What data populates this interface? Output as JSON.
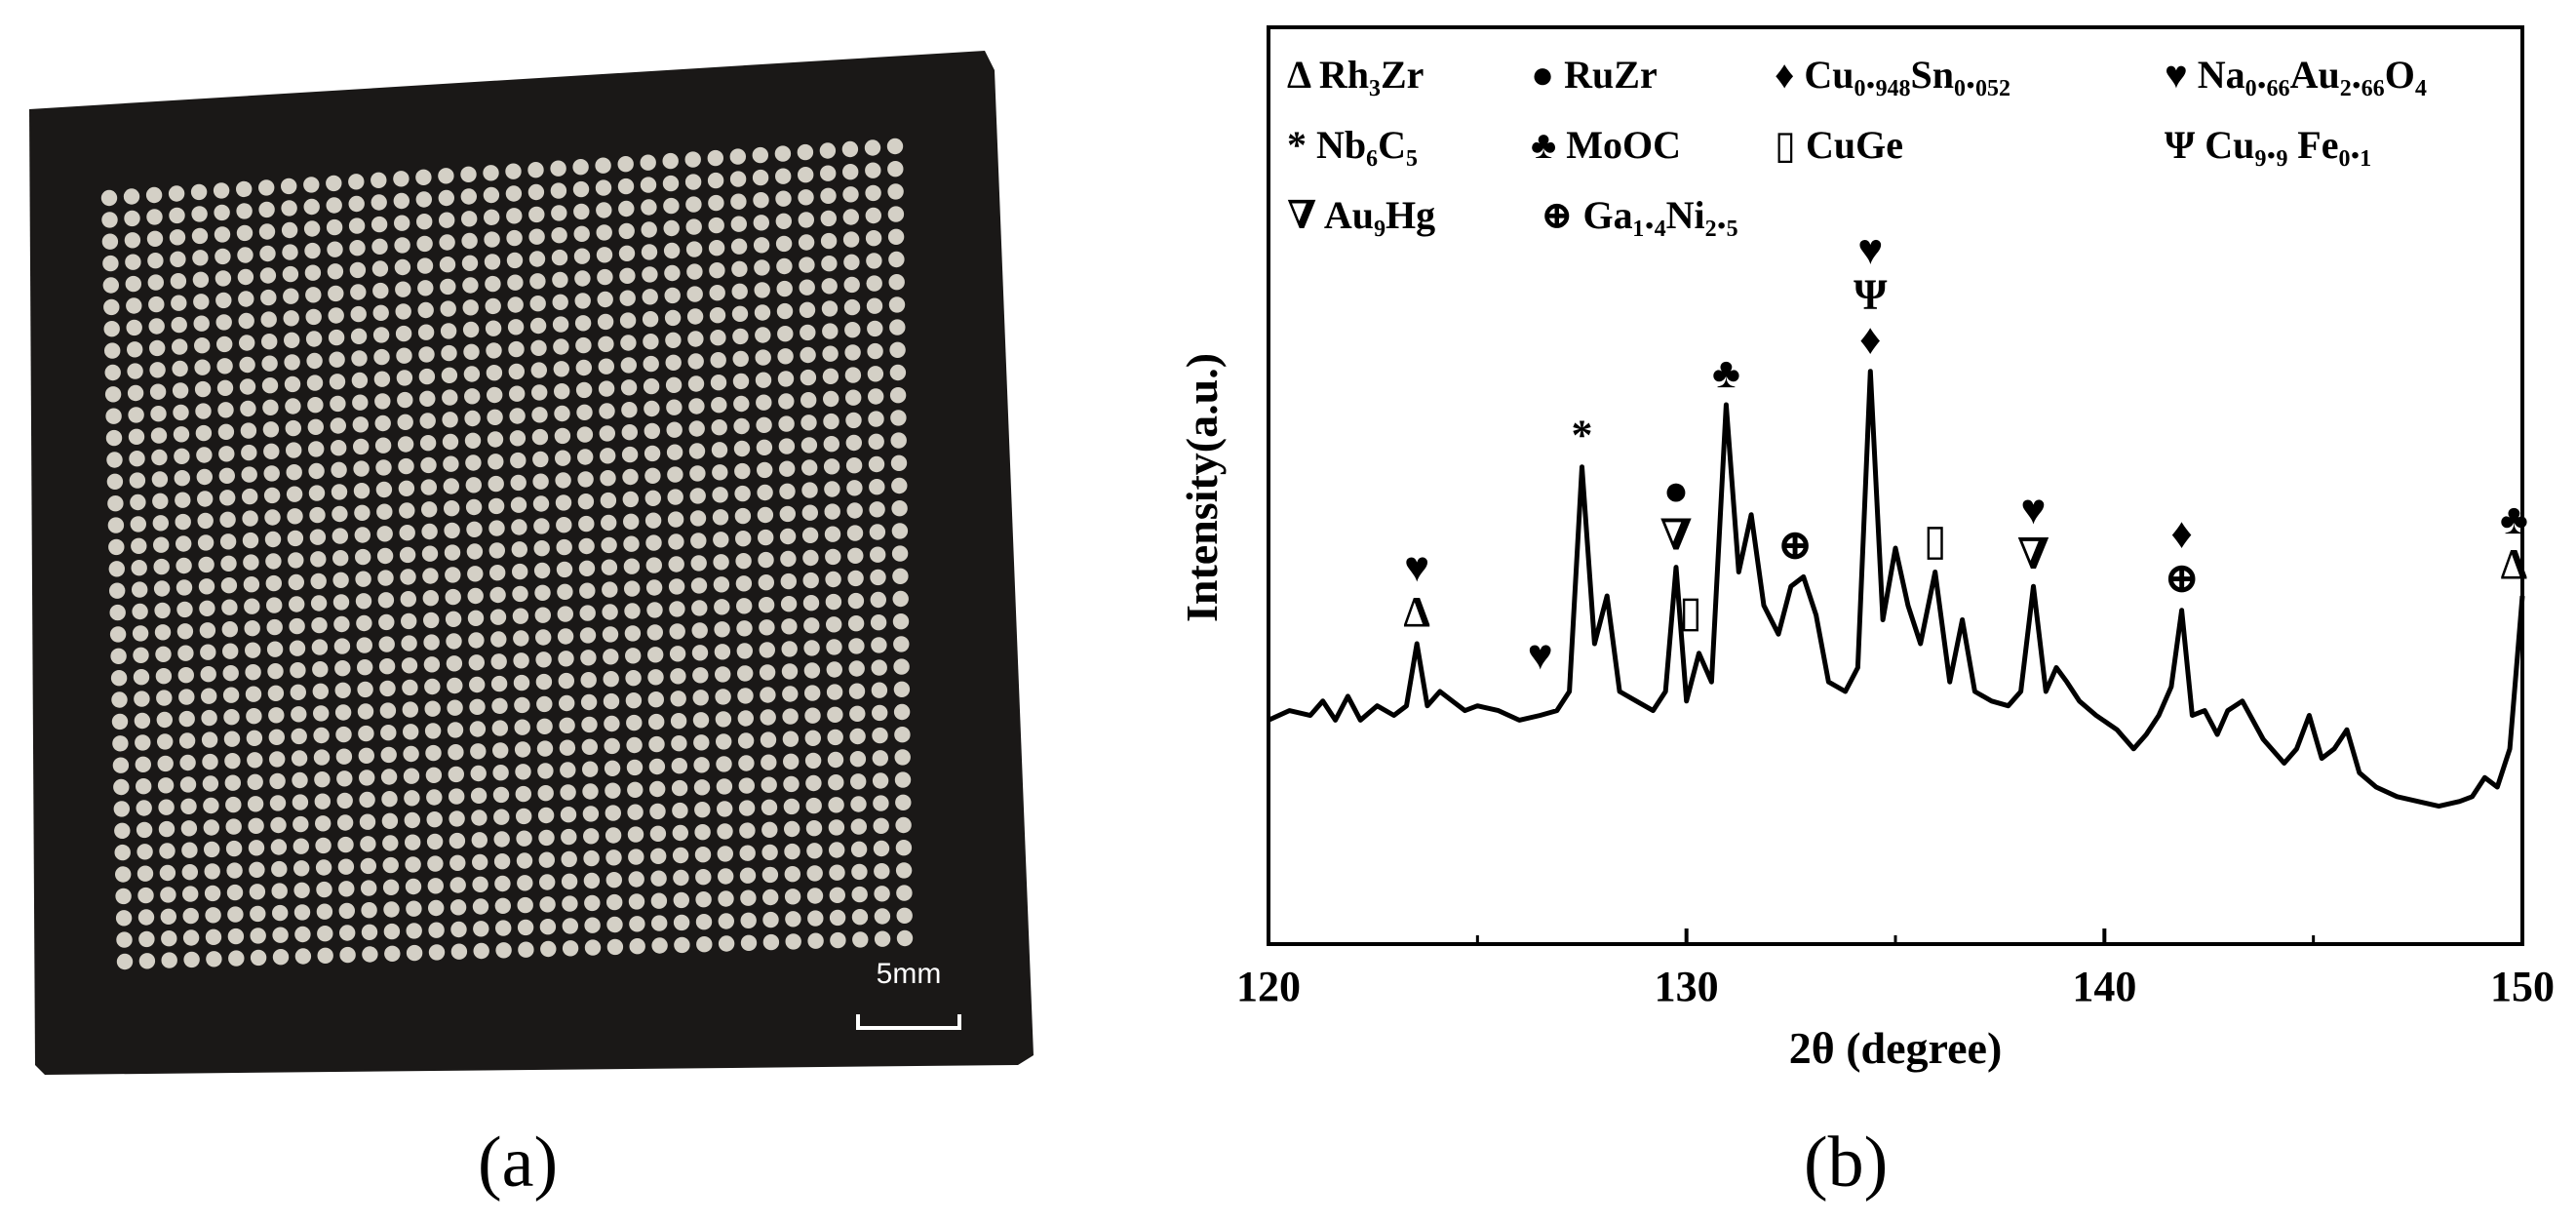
{
  "panel_a": {
    "sublabel": "(a)",
    "scale_bar_label": "5mm",
    "grid_rows": 36,
    "grid_cols": 36,
    "plate_color": "#1a1817",
    "ball_color": "#d4d0c6"
  },
  "panel_b": {
    "sublabel": "(b)"
  },
  "chart_data": {
    "type": "line",
    "title": "",
    "xlabel": "2θ (degree)",
    "ylabel": "Intensity(a.u.)",
    "xlim": [
      120,
      150
    ],
    "ylim": [
      0,
      100
    ],
    "xticks": [
      120,
      130,
      140,
      150
    ],
    "xtick_labels": [
      "120",
      "130",
      "140",
      "150"
    ],
    "grid": false,
    "legend_position": "top",
    "legend": [
      {
        "symbol": "Δ",
        "name": "Rh₃Zr"
      },
      {
        "symbol": "●",
        "name": "RuZr"
      },
      {
        "symbol": "♦",
        "name": "Cu₀.₉₄₈Sn₀.₀₅₂"
      },
      {
        "symbol": "♥",
        "name": "Na₀.₆₆Au₂.₆₆O₄"
      },
      {
        "symbol": "*",
        "name": "Nb₆C₅"
      },
      {
        "symbol": "♣",
        "name": "MoOC"
      },
      {
        "symbol": "▯",
        "name": "CuGe"
      },
      {
        "symbol": "Ψ",
        "name": "Cu₉.₉ Fe₀.₁"
      },
      {
        "symbol": "∇",
        "name": "Au₉Hg"
      },
      {
        "symbol": "⊕",
        "name": "Ga₁.₄Ni₂.₅"
      }
    ],
    "series": [
      {
        "name": "XRD pattern",
        "x": [
          120.0,
          120.5,
          121.0,
          121.3,
          121.6,
          121.9,
          122.2,
          122.6,
          123.0,
          123.3,
          123.55,
          123.8,
          124.1,
          124.4,
          124.7,
          125.0,
          125.5,
          126.0,
          126.5,
          126.9,
          127.2,
          127.5,
          127.8,
          128.1,
          128.4,
          128.8,
          129.2,
          129.5,
          129.75,
          130.0,
          130.3,
          130.6,
          130.95,
          131.25,
          131.55,
          131.85,
          132.2,
          132.5,
          132.8,
          133.1,
          133.4,
          133.8,
          134.1,
          134.4,
          134.7,
          135.0,
          135.3,
          135.6,
          135.95,
          136.3,
          136.6,
          136.9,
          137.3,
          137.7,
          138.0,
          138.3,
          138.6,
          138.85,
          139.1,
          139.4,
          139.8,
          140.3,
          140.7,
          141.0,
          141.3,
          141.6,
          141.85,
          142.1,
          142.4,
          142.7,
          142.95,
          143.3,
          143.8,
          144.3,
          144.6,
          144.9,
          145.2,
          145.5,
          145.8,
          146.1,
          146.5,
          147.0,
          147.5,
          148.0,
          148.5,
          148.8,
          149.1,
          149.4,
          149.7,
          150.0
        ],
        "y": [
          34,
          36,
          35,
          38,
          34,
          39,
          34,
          37,
          35,
          37,
          50,
          37,
          40,
          38,
          36,
          37,
          36,
          34,
          35,
          36,
          40,
          87,
          50,
          60,
          40,
          38,
          36,
          40,
          66,
          38,
          48,
          42,
          100,
          65,
          77,
          58,
          52,
          62,
          64,
          56,
          42,
          40,
          45,
          107,
          55,
          70,
          58,
          50,
          65,
          42,
          55,
          40,
          38,
          37,
          40,
          62,
          40,
          45,
          42,
          38,
          35,
          32,
          28,
          31,
          35,
          41,
          57,
          35,
          36,
          31,
          36,
          38,
          30,
          25,
          28,
          35,
          26,
          28,
          32,
          23,
          20,
          18,
          17,
          16,
          17,
          18,
          22,
          20,
          28,
          60
        ],
        "values_note": "y in arbitrary units on a 0–100 scale (relative peak heights)"
      }
    ],
    "peak_annotations": [
      {
        "x": 123.55,
        "y": 50,
        "symbols": [
          "♥",
          "Δ"
        ]
      },
      {
        "x": 126.5,
        "y": 41,
        "symbols": [
          "♥"
        ]
      },
      {
        "x": 127.5,
        "y": 87,
        "symbols": [
          "*"
        ]
      },
      {
        "x": 129.75,
        "y": 66,
        "symbols": [
          "●",
          "∇"
        ]
      },
      {
        "x": 130.1,
        "y": 50,
        "symbols": [
          "▯"
        ]
      },
      {
        "x": 130.95,
        "y": 100,
        "symbols": [
          "♣"
        ]
      },
      {
        "x": 132.6,
        "y": 64,
        "symbols": [
          "⊕"
        ]
      },
      {
        "x": 134.4,
        "y": 107,
        "symbols": [
          "♥",
          "Ψ",
          "♦"
        ]
      },
      {
        "x": 135.95,
        "y": 65,
        "symbols": [
          "▯"
        ]
      },
      {
        "x": 138.3,
        "y": 62,
        "symbols": [
          "♥",
          "∇"
        ]
      },
      {
        "x": 141.85,
        "y": 57,
        "symbols": [
          "♦",
          "⊕"
        ]
      },
      {
        "x": 149.8,
        "y": 60,
        "symbols": [
          "♣",
          "Δ"
        ]
      }
    ]
  }
}
